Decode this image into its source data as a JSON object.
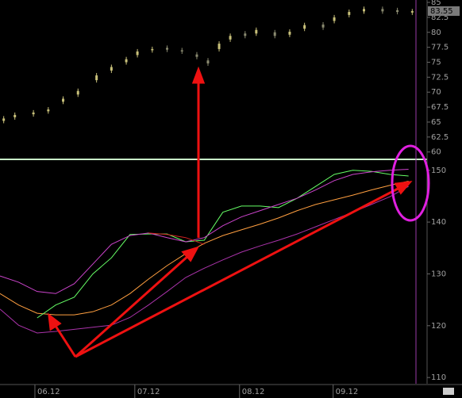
{
  "chart_data": [
    {
      "type": "candlestick",
      "x": [
        1,
        4,
        9,
        13,
        17,
        21,
        26,
        30,
        34,
        37,
        41,
        45,
        49,
        53,
        56,
        59,
        62,
        66,
        69,
        74,
        78,
        82,
        87,
        90,
        94,
        98,
        103,
        107,
        111
      ],
      "open": [
        65.2,
        65.8,
        66.3,
        66.8,
        68.4,
        69.6,
        72.0,
        73.6,
        75.0,
        76.2,
        77.0,
        77.4,
        77.0,
        76.3,
        75.3,
        77.2,
        78.8,
        79.8,
        79.8,
        80.0,
        79.6,
        80.6,
        81.3,
        81.9,
        82.9,
        83.5,
        83.9,
        83.7,
        83.3
      ],
      "high": [
        66.0,
        66.6,
        67.0,
        67.5,
        69.3,
        70.6,
        73.2,
        74.6,
        75.9,
        77.2,
        77.6,
        77.8,
        77.4,
        76.7,
        75.7,
        78.5,
        79.8,
        80.2,
        80.8,
        80.4,
        80.5,
        81.6,
        81.7,
        82.9,
        83.8,
        84.3,
        84.3,
        84.1,
        83.9
      ],
      "low": [
        64.8,
        65.4,
        65.9,
        66.4,
        68.0,
        69.2,
        71.6,
        73.2,
        74.6,
        75.8,
        76.6,
        76.7,
        76.4,
        75.5,
        74.4,
        76.8,
        78.4,
        79.0,
        79.4,
        79.0,
        79.2,
        80.2,
        80.4,
        81.5,
        82.5,
        83.1,
        83.1,
        83.0,
        82.9
      ],
      "close": [
        65.6,
        66.2,
        66.6,
        67.1,
        68.9,
        70.2,
        72.8,
        74.2,
        75.5,
        76.8,
        77.2,
        77.1,
        76.8,
        75.9,
        74.8,
        78.1,
        79.4,
        79.4,
        80.4,
        79.4,
        80.1,
        81.2,
        80.8,
        82.5,
        83.4,
        83.9,
        83.5,
        83.4,
        83.55
      ],
      "up_color": "#c8c07a",
      "down_color": "#8a8a70",
      "last_price": 83.55,
      "xlim": [
        0,
        112
      ],
      "ylim": [
        58.9,
        85.4
      ],
      "yticks": [
        60,
        62.5,
        65,
        67.5,
        70,
        72.5,
        75,
        77.5,
        80,
        82.5,
        85
      ]
    },
    {
      "type": "line",
      "x": [
        0,
        5,
        10,
        15,
        20,
        25,
        30,
        35,
        40,
        45,
        50,
        55,
        60,
        65,
        70,
        75,
        80,
        85,
        90,
        95,
        100,
        105,
        110
      ],
      "series": [
        {
          "color": "#ff9f40",
          "values": [
            126.2,
            124,
            122.4,
            122.1,
            122.1,
            122.7,
            124,
            126.2,
            129,
            131.6,
            133.9,
            135.9,
            137.4,
            138.5,
            139.6,
            140.8,
            142.2,
            143.4,
            144.3,
            145.2,
            146.2,
            147.1,
            147.9
          ]
        },
        {
          "color": "#66ff66",
          "values": [
            null,
            null,
            121.5,
            124,
            125.5,
            130,
            133.1,
            137.6,
            137.7,
            137.7,
            136.2,
            136.5,
            141.9,
            143.1,
            143.1,
            142.8,
            144.6,
            146.9,
            149.2,
            150,
            149.8,
            149.2,
            148.9
          ]
        },
        {
          "color": "#cc44cc",
          "values": [
            129.6,
            128.4,
            126.6,
            126.2,
            128.1,
            131.9,
            135.7,
            137.4,
            137.9,
            137,
            136.2,
            137,
            139.3,
            141,
            142.2,
            143.4,
            144.6,
            146.2,
            148,
            149.2,
            149.7,
            150,
            150.2
          ]
        },
        {
          "color": "#aa33aa",
          "values": [
            123.2,
            120.1,
            118.6,
            118.9,
            119.3,
            119.7,
            120.1,
            121.6,
            124,
            126.6,
            129.3,
            131.1,
            132.7,
            134.2,
            135.4,
            136.5,
            137.7,
            139.1,
            140.5,
            141.9,
            143.4,
            144.9,
            146.9
          ]
        },
        {
          "color": "#d02020",
          "values": [
            null,
            null,
            null,
            null,
            null,
            null,
            null,
            null,
            137.9,
            137.6,
            137,
            135.7,
            null,
            null,
            null,
            null,
            null,
            null,
            null,
            null,
            null,
            null,
            null
          ]
        }
      ],
      "xlim": [
        0,
        112
      ],
      "ylim": [
        108.8,
        151.8
      ],
      "yticks": [
        110,
        120,
        130,
        140,
        150
      ],
      "xticks": [
        {
          "value": 9.4,
          "label": "06.12"
        },
        {
          "value": 36.3,
          "label": "07.12"
        },
        {
          "value": 64.5,
          "label": "08.12"
        },
        {
          "value": 89.7,
          "label": "09.12"
        }
      ]
    }
  ]
}
